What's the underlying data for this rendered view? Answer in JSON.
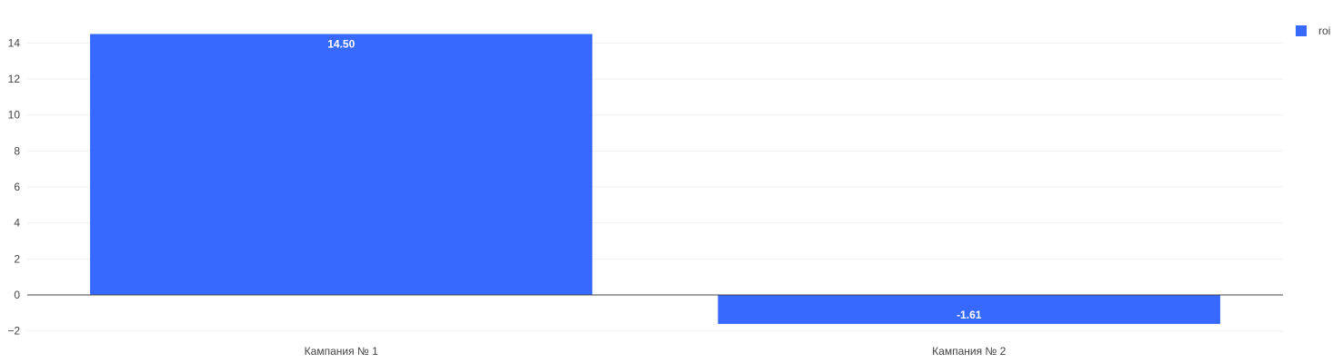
{
  "chart_data": {
    "type": "bar",
    "categories": [
      "Кампания № 1",
      "Кампания № 2"
    ],
    "series": [
      {
        "name": "roi",
        "values": [
          14.5,
          -1.61
        ],
        "color": "#3769FF"
      }
    ],
    "data_labels": [
      "14.50",
      "-1.61"
    ],
    "y_ticks": [
      -2,
      0,
      2,
      4,
      6,
      8,
      10,
      12,
      14
    ],
    "y_tick_labels": [
      "−2",
      "0",
      "2",
      "4",
      "6",
      "8",
      "10",
      "12",
      "14"
    ],
    "ylim": [
      -2,
      14.5
    ],
    "title": "",
    "xlabel": "",
    "ylabel": "",
    "grid": true,
    "legend_position": "top-right",
    "colors": {
      "grid": "#eeeeee",
      "zero_line": "#444444",
      "text": "#444444"
    }
  }
}
